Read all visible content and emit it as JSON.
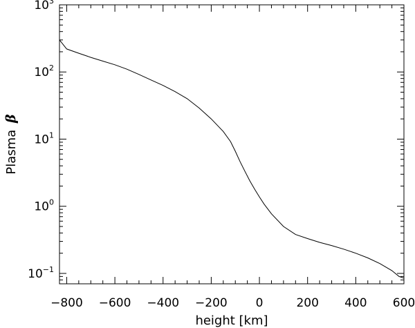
{
  "chart_data": {
    "type": "line",
    "xlabel": "height [km]",
    "ylabel": "Plasma",
    "ylabel_symbol": "β",
    "x_scale": "linear",
    "y_scale": "log",
    "xlim": [
      -830,
      600
    ],
    "ylim": [
      0.07,
      1000
    ],
    "xticks": [
      -800,
      -600,
      -400,
      -200,
      0,
      200,
      400,
      600
    ],
    "xtick_labels": [
      "−800",
      "−600",
      "−400",
      "−200",
      "0",
      "200",
      "400",
      "600"
    ],
    "yticks": [
      {
        "value": 0.1,
        "base": "10",
        "exp": "−1"
      },
      {
        "value": 1,
        "base": "10",
        "exp": "0"
      },
      {
        "value": 10,
        "base": "10",
        "exp": "1"
      },
      {
        "value": 100,
        "base": "10",
        "exp": "2"
      },
      {
        "value": 1000,
        "base": "10",
        "exp": "3"
      }
    ],
    "grid": false,
    "series": [
      {
        "color": "#000000",
        "x": [
          -830,
          -800,
          -750,
          -700,
          -650,
          -600,
          -550,
          -500,
          -450,
          -400,
          -350,
          -300,
          -250,
          -200,
          -150,
          -120,
          -100,
          -80,
          -60,
          -40,
          -20,
          0,
          20,
          50,
          100,
          150,
          200,
          250,
          300,
          350,
          400,
          450,
          500,
          550,
          580,
          600
        ],
        "y": [
          300,
          220,
          190,
          165,
          145,
          128,
          110,
          92,
          76,
          63,
          51,
          40,
          29,
          20,
          13,
          9.2,
          6.6,
          4.6,
          3.3,
          2.4,
          1.8,
          1.38,
          1.07,
          0.77,
          0.5,
          0.38,
          0.33,
          0.29,
          0.26,
          0.23,
          0.2,
          0.17,
          0.14,
          0.11,
          0.09,
          0.085
        ]
      }
    ]
  }
}
